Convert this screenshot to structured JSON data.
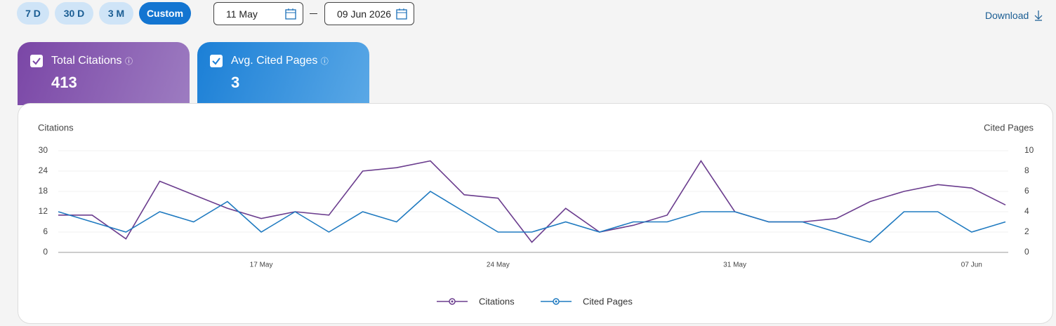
{
  "controls": {
    "ranges": [
      "7 D",
      "30 D",
      "3 M",
      "Custom"
    ],
    "start_date": "11 May",
    "end_date": "09 Jun 2026",
    "download": "Download"
  },
  "cards": [
    {
      "label": "Total Citations",
      "value": "413"
    },
    {
      "label": "Avg. Cited Pages",
      "value": "3"
    }
  ],
  "chart_data": {
    "type": "line",
    "y_label": "Citations",
    "y2_label": "Cited Pages",
    "categories": [
      null,
      null,
      null,
      null,
      null,
      null,
      "17 May",
      null,
      null,
      null,
      null,
      null,
      null,
      "24 May",
      null,
      null,
      null,
      null,
      null,
      null,
      "31 May",
      null,
      null,
      null,
      null,
      null,
      null,
      "07 Jun",
      null
    ],
    "series": [
      {
        "name": "Citations",
        "color": "#6b3d8e",
        "values": [
          11,
          11,
          4,
          21,
          17,
          13,
          10,
          12,
          11,
          24,
          25,
          27,
          17,
          16,
          3,
          13,
          6,
          8,
          11,
          27,
          12,
          9,
          9,
          10,
          15,
          18,
          20,
          19,
          14
        ]
      },
      {
        "name": "Cited Pages",
        "color": "#1f7ac0",
        "axis": "y2",
        "values": [
          4,
          3,
          2,
          4,
          3,
          5,
          2,
          4,
          2,
          4,
          3,
          6,
          4,
          2,
          2,
          3,
          2,
          3,
          3,
          4,
          4,
          3,
          3,
          2,
          1,
          4,
          4,
          2,
          3
        ]
      }
    ],
    "ylim": [
      0,
      30
    ],
    "yticks": [
      0,
      6,
      12,
      18,
      24,
      30
    ],
    "y2lim": [
      0,
      10
    ],
    "y2ticks": [
      0,
      2,
      4,
      6,
      8,
      10
    ],
    "grid": true,
    "legend": "bottom"
  }
}
